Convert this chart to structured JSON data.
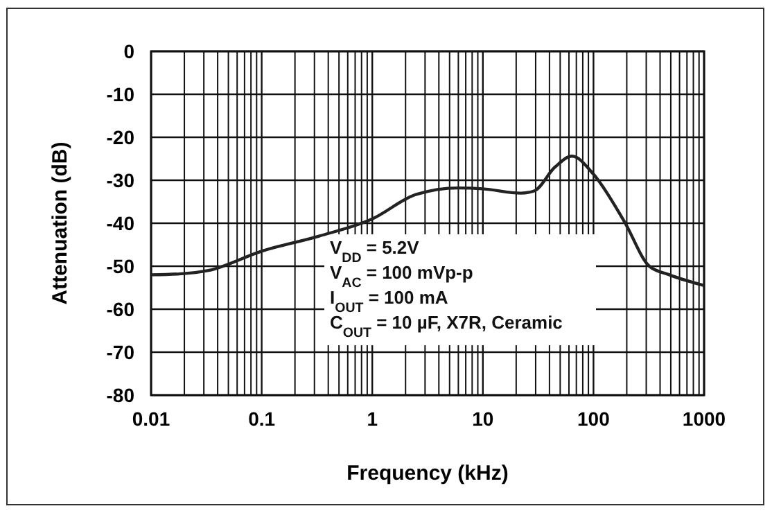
{
  "chart_data": {
    "type": "line",
    "xlabel": "Frequency (kHz)",
    "ylabel": "Attenuation (dB)",
    "x": [
      0.01,
      0.018,
      0.033,
      0.1,
      0.33,
      1,
      2.5,
      6,
      10,
      22,
      29,
      45,
      64,
      100,
      190,
      320,
      485,
      1000
    ],
    "series": [
      {
        "color": "#222222",
        "values": [
          -52,
          -51.8,
          -51,
          -46.5,
          -43,
          -39,
          -33.3,
          -31.8,
          -32,
          -33,
          -32.5,
          -26.9,
          -24.4,
          -28.6,
          -39.6,
          -50,
          -52,
          -54.5
        ]
      }
    ],
    "xlim": [
      0.01,
      1000
    ],
    "xticks": [
      0.01,
      0.1,
      1,
      10,
      100,
      1000
    ],
    "ylim": [
      -80,
      0
    ],
    "yticks": [
      -80,
      -70,
      -60,
      -50,
      -40,
      -30,
      -20,
      -10,
      0
    ],
    "log": "x",
    "grid": true,
    "line_style": "solid",
    "marker": "none",
    "annotations": [
      "V$_{DD}$ = 5.2V",
      "V$_{AC}$ = 100 mVp-p",
      "I$_{OUT}$ = 100 mA",
      "C$_{OUT}$ = 10 µF, X7R, Ceramic"
    ]
  }
}
